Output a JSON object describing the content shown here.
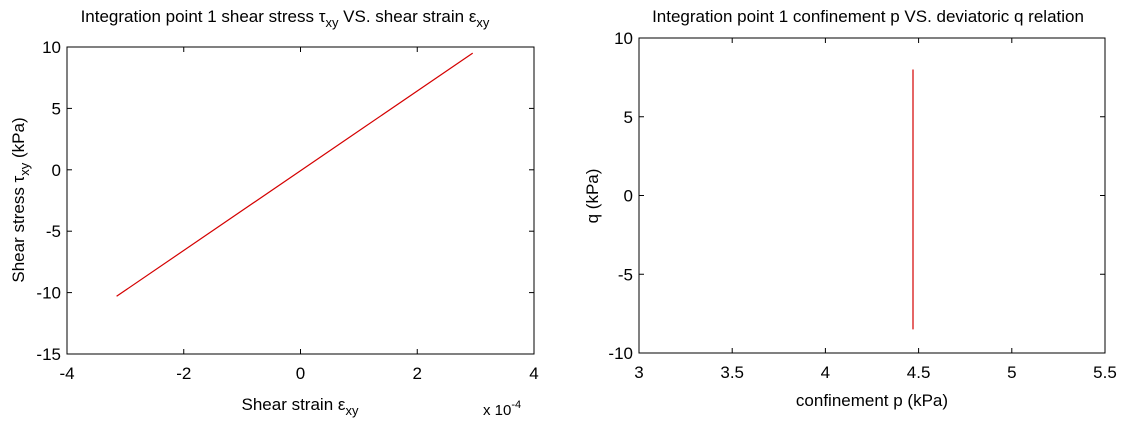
{
  "chart_data": [
    {
      "type": "line",
      "title": {
        "pre": "Integration point 1 shear stress ",
        "sym1": "τ",
        "sub1": "xy",
        "mid": " VS. shear strain ",
        "sym2": "ε",
        "sub2": "xy"
      },
      "xlabel": {
        "pre": "Shear strain ",
        "sym": "ε",
        "sub": "xy"
      },
      "ylabel": {
        "pre": "Shear stress ",
        "sym": "τ",
        "sub": "xy",
        "post": " (kPa)"
      },
      "x_exponent": {
        "base": "x 10",
        "exp": "-4"
      },
      "xlim": [
        -4,
        4
      ],
      "ylim": [
        -15,
        10
      ],
      "x_ticks": [
        -4,
        -2,
        0,
        2,
        4
      ],
      "x_tick_labels": [
        "-4",
        "-2",
        "0",
        "2",
        "4"
      ],
      "y_ticks": [
        -15,
        -10,
        -5,
        0,
        5,
        10
      ],
      "y_tick_labels": [
        "-15",
        "-10",
        "-5",
        "0",
        "5",
        "10"
      ],
      "grid": false,
      "line_color": "#d40000",
      "series": [
        {
          "x": [
            -3.15,
            2.95
          ],
          "y": [
            -10.3,
            9.5
          ]
        }
      ]
    },
    {
      "type": "line",
      "title": {
        "text": "Integration point 1 confinement p VS. deviatoric q relation"
      },
      "xlabel": {
        "text": "confinement p (kPa)"
      },
      "ylabel": {
        "text": "q (kPa)"
      },
      "xlim": [
        3,
        5.5
      ],
      "ylim": [
        -10,
        10
      ],
      "x_ticks": [
        3,
        3.5,
        4,
        4.5,
        5,
        5.5
      ],
      "x_tick_labels": [
        "3",
        "3.5",
        "4",
        "4.5",
        "5",
        "5.5"
      ],
      "y_ticks": [
        -10,
        -5,
        0,
        5,
        10
      ],
      "y_tick_labels": [
        "-10",
        "-5",
        "0",
        "5",
        "10"
      ],
      "grid": false,
      "line_color": "#d40000",
      "series": [
        {
          "x": [
            4.47,
            4.47
          ],
          "y": [
            -8.5,
            8.0
          ]
        }
      ]
    }
  ]
}
